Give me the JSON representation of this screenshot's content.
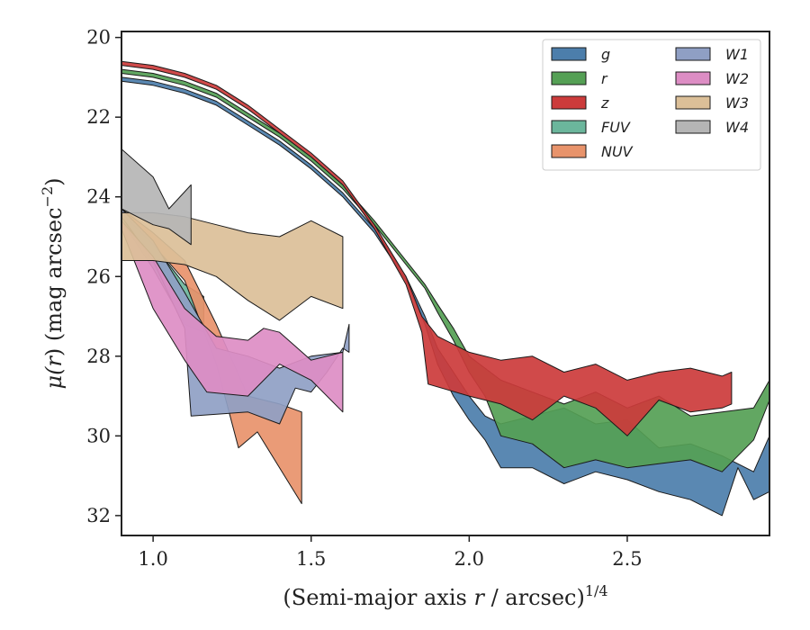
{
  "chart_data": {
    "type": "area",
    "title": "",
    "xlabel": {
      "prefix": "(Semi-major axis ",
      "var": "r",
      "suffix": " / arcsec)",
      "sup": "1/4"
    },
    "ylabel": {
      "prefix": "μ(",
      "var": "r",
      "suffix": ") (mag arcsec",
      "sup": "−2",
      "close": ")"
    },
    "xlim": [
      0.9,
      2.95
    ],
    "ylim": [
      32.5,
      19.85
    ],
    "y_inverted": true,
    "xticks": [
      1.0,
      1.5,
      2.0,
      2.5
    ],
    "xtick_labels": [
      "1.0",
      "1.5",
      "2.0",
      "2.5"
    ],
    "yticks": [
      20,
      22,
      24,
      26,
      28,
      30,
      32
    ],
    "ytick_labels": [
      "20",
      "22",
      "24",
      "26",
      "28",
      "30",
      "32"
    ],
    "legend": {
      "placement": "top-right",
      "columns": 2
    },
    "series": [
      {
        "name": "g",
        "color": "#4c7eab",
        "upper": [
          [
            0.9,
            21.0
          ],
          [
            1.0,
            21.1
          ],
          [
            1.1,
            21.3
          ],
          [
            1.2,
            21.6
          ],
          [
            1.3,
            22.1
          ],
          [
            1.4,
            22.6
          ],
          [
            1.5,
            23.2
          ],
          [
            1.6,
            23.9
          ],
          [
            1.7,
            24.8
          ],
          [
            1.8,
            26.0
          ],
          [
            1.86,
            27.0
          ],
          [
            1.9,
            27.8
          ],
          [
            1.95,
            28.4
          ],
          [
            2.0,
            29.0
          ],
          [
            2.05,
            29.5
          ],
          [
            2.1,
            29.7
          ],
          [
            2.2,
            29.5
          ],
          [
            2.3,
            29.3
          ],
          [
            2.4,
            29.7
          ],
          [
            2.5,
            29.6
          ],
          [
            2.6,
            30.3
          ],
          [
            2.7,
            30.2
          ],
          [
            2.8,
            30.5
          ],
          [
            2.9,
            30.9
          ],
          [
            2.95,
            30.0
          ]
        ],
        "lower": [
          [
            0.9,
            21.1
          ],
          [
            1.0,
            21.2
          ],
          [
            1.1,
            21.4
          ],
          [
            1.2,
            21.7
          ],
          [
            1.3,
            22.2
          ],
          [
            1.4,
            22.7
          ],
          [
            1.5,
            23.3
          ],
          [
            1.6,
            24.0
          ],
          [
            1.7,
            24.9
          ],
          [
            1.8,
            26.1
          ],
          [
            1.86,
            27.2
          ],
          [
            1.9,
            28.2
          ],
          [
            1.95,
            29.0
          ],
          [
            2.0,
            29.6
          ],
          [
            2.05,
            30.1
          ],
          [
            2.1,
            30.8
          ],
          [
            2.2,
            30.8
          ],
          [
            2.3,
            31.2
          ],
          [
            2.4,
            30.9
          ],
          [
            2.5,
            31.1
          ],
          [
            2.6,
            31.4
          ],
          [
            2.7,
            31.6
          ],
          [
            2.8,
            32.0
          ],
          [
            2.85,
            30.8
          ],
          [
            2.9,
            31.6
          ],
          [
            2.95,
            31.4
          ]
        ]
      },
      {
        "name": "r",
        "color": "#55a055",
        "upper": [
          [
            0.9,
            20.8
          ],
          [
            1.0,
            20.9
          ],
          [
            1.1,
            21.1
          ],
          [
            1.2,
            21.4
          ],
          [
            1.3,
            21.9
          ],
          [
            1.4,
            22.4
          ],
          [
            1.5,
            23.0
          ],
          [
            1.6,
            23.7
          ],
          [
            1.7,
            24.6
          ],
          [
            1.8,
            25.6
          ],
          [
            1.86,
            26.2
          ],
          [
            1.9,
            26.7
          ],
          [
            1.95,
            27.3
          ],
          [
            2.0,
            28.0
          ],
          [
            2.1,
            28.6
          ],
          [
            2.2,
            28.9
          ],
          [
            2.3,
            29.2
          ],
          [
            2.4,
            28.9
          ],
          [
            2.5,
            29.3
          ],
          [
            2.6,
            29.0
          ],
          [
            2.7,
            29.5
          ],
          [
            2.8,
            29.4
          ],
          [
            2.9,
            29.3
          ],
          [
            2.95,
            28.6
          ]
        ],
        "lower": [
          [
            0.9,
            20.9
          ],
          [
            1.0,
            21.0
          ],
          [
            1.1,
            21.2
          ],
          [
            1.2,
            21.5
          ],
          [
            1.3,
            22.0
          ],
          [
            1.4,
            22.5
          ],
          [
            1.5,
            23.1
          ],
          [
            1.6,
            23.8
          ],
          [
            1.7,
            24.7
          ],
          [
            1.8,
            25.7
          ],
          [
            1.86,
            26.3
          ],
          [
            1.9,
            26.9
          ],
          [
            1.95,
            27.6
          ],
          [
            2.0,
            28.4
          ],
          [
            2.05,
            29.0
          ],
          [
            2.1,
            30.0
          ],
          [
            2.2,
            30.2
          ],
          [
            2.3,
            30.8
          ],
          [
            2.4,
            30.6
          ],
          [
            2.5,
            30.8
          ],
          [
            2.6,
            30.7
          ],
          [
            2.7,
            30.6
          ],
          [
            2.8,
            30.9
          ],
          [
            2.9,
            30.1
          ],
          [
            2.95,
            29.1
          ]
        ]
      },
      {
        "name": "z",
        "color": "#cc3b3b",
        "upper": [
          [
            0.9,
            20.6
          ],
          [
            1.0,
            20.7
          ],
          [
            1.1,
            20.9
          ],
          [
            1.2,
            21.2
          ],
          [
            1.3,
            21.7
          ],
          [
            1.4,
            22.3
          ],
          [
            1.5,
            22.9
          ],
          [
            1.6,
            23.6
          ],
          [
            1.7,
            24.7
          ],
          [
            1.8,
            26.0
          ],
          [
            1.85,
            27.0
          ],
          [
            1.9,
            27.5
          ],
          [
            2.0,
            27.9
          ],
          [
            2.1,
            28.1
          ],
          [
            2.2,
            28.0
          ],
          [
            2.3,
            28.4
          ],
          [
            2.4,
            28.2
          ],
          [
            2.5,
            28.6
          ],
          [
            2.6,
            28.4
          ],
          [
            2.7,
            28.3
          ],
          [
            2.8,
            28.5
          ],
          [
            2.83,
            28.4
          ]
        ],
        "lower": [
          [
            0.9,
            20.7
          ],
          [
            1.0,
            20.8
          ],
          [
            1.1,
            21.0
          ],
          [
            1.2,
            21.3
          ],
          [
            1.3,
            21.8
          ],
          [
            1.4,
            22.4
          ],
          [
            1.5,
            23.0
          ],
          [
            1.6,
            23.7
          ],
          [
            1.7,
            24.8
          ],
          [
            1.8,
            26.2
          ],
          [
            1.85,
            27.4
          ],
          [
            1.87,
            28.7
          ],
          [
            2.0,
            29.0
          ],
          [
            2.1,
            29.2
          ],
          [
            2.2,
            29.6
          ],
          [
            2.3,
            29.0
          ],
          [
            2.4,
            29.3
          ],
          [
            2.5,
            30.0
          ],
          [
            2.6,
            29.1
          ],
          [
            2.7,
            29.4
          ],
          [
            2.8,
            29.3
          ],
          [
            2.83,
            29.2
          ]
        ]
      },
      {
        "name": "FUV",
        "color": "#6bb69c",
        "upper": [
          [
            0.9,
            24.4
          ],
          [
            1.0,
            25.2
          ],
          [
            1.1,
            26.2
          ],
          [
            1.16,
            26.5
          ]
        ],
        "lower": [
          [
            0.9,
            24.6
          ],
          [
            1.0,
            25.8
          ],
          [
            1.1,
            27.2
          ],
          [
            1.16,
            27.4
          ]
        ]
      },
      {
        "name": "NUV",
        "color": "#e8936b",
        "upper": [
          [
            0.9,
            24.3
          ],
          [
            1.0,
            24.9
          ],
          [
            1.1,
            25.6
          ],
          [
            1.2,
            27.2
          ],
          [
            1.3,
            29.0
          ],
          [
            1.4,
            29.2
          ],
          [
            1.47,
            29.4
          ]
        ],
        "lower": [
          [
            0.9,
            24.4
          ],
          [
            1.0,
            25.2
          ],
          [
            1.1,
            26.1
          ],
          [
            1.2,
            28.2
          ],
          [
            1.27,
            30.3
          ],
          [
            1.33,
            29.9
          ],
          [
            1.47,
            31.7
          ]
        ]
      },
      {
        "name": "W1",
        "color": "#8f9fc4",
        "upper": [
          [
            0.9,
            24.3
          ],
          [
            1.0,
            25.1
          ],
          [
            1.1,
            26.4
          ],
          [
            1.2,
            27.8
          ],
          [
            1.3,
            28.0
          ],
          [
            1.4,
            28.3
          ],
          [
            1.5,
            28.0
          ],
          [
            1.6,
            27.9
          ],
          [
            1.62,
            27.2
          ]
        ],
        "lower": [
          [
            0.9,
            24.5
          ],
          [
            1.0,
            25.6
          ],
          [
            1.1,
            27.3
          ],
          [
            1.12,
            29.5
          ],
          [
            1.3,
            29.4
          ],
          [
            1.4,
            29.7
          ],
          [
            1.45,
            28.8
          ],
          [
            1.5,
            28.9
          ],
          [
            1.55,
            28.4
          ],
          [
            1.6,
            27.8
          ],
          [
            1.62,
            27.9
          ]
        ]
      },
      {
        "name": "W2",
        "color": "#dd8dc4",
        "upper": [
          [
            0.9,
            24.6
          ],
          [
            1.0,
            25.5
          ],
          [
            1.1,
            26.8
          ],
          [
            1.2,
            27.5
          ],
          [
            1.3,
            27.6
          ],
          [
            1.35,
            27.3
          ],
          [
            1.4,
            27.4
          ],
          [
            1.5,
            28.1
          ],
          [
            1.6,
            27.9
          ]
        ],
        "lower": [
          [
            0.9,
            24.8
          ],
          [
            1.0,
            26.8
          ],
          [
            1.1,
            28.1
          ],
          [
            1.17,
            28.9
          ],
          [
            1.3,
            29.0
          ],
          [
            1.4,
            28.2
          ],
          [
            1.5,
            28.6
          ],
          [
            1.6,
            29.4
          ]
        ]
      },
      {
        "name": "W3",
        "color": "#dbbf98",
        "upper": [
          [
            0.9,
            24.4
          ],
          [
            1.0,
            24.4
          ],
          [
            1.1,
            24.5
          ],
          [
            1.2,
            24.7
          ],
          [
            1.3,
            24.9
          ],
          [
            1.4,
            25.0
          ],
          [
            1.5,
            24.6
          ],
          [
            1.6,
            25.0
          ]
        ],
        "lower": [
          [
            0.9,
            25.6
          ],
          [
            1.0,
            25.6
          ],
          [
            1.1,
            25.7
          ],
          [
            1.2,
            26.0
          ],
          [
            1.3,
            26.6
          ],
          [
            1.4,
            27.1
          ],
          [
            1.5,
            26.5
          ],
          [
            1.6,
            26.8
          ]
        ]
      },
      {
        "name": "W4",
        "color": "#b5b5b5",
        "upper": [
          [
            0.9,
            22.8
          ],
          [
            1.0,
            23.5
          ],
          [
            1.05,
            24.3
          ],
          [
            1.12,
            23.7
          ]
        ],
        "lower": [
          [
            0.9,
            24.3
          ],
          [
            1.0,
            24.7
          ],
          [
            1.05,
            24.8
          ],
          [
            1.12,
            25.2
          ]
        ]
      }
    ]
  }
}
